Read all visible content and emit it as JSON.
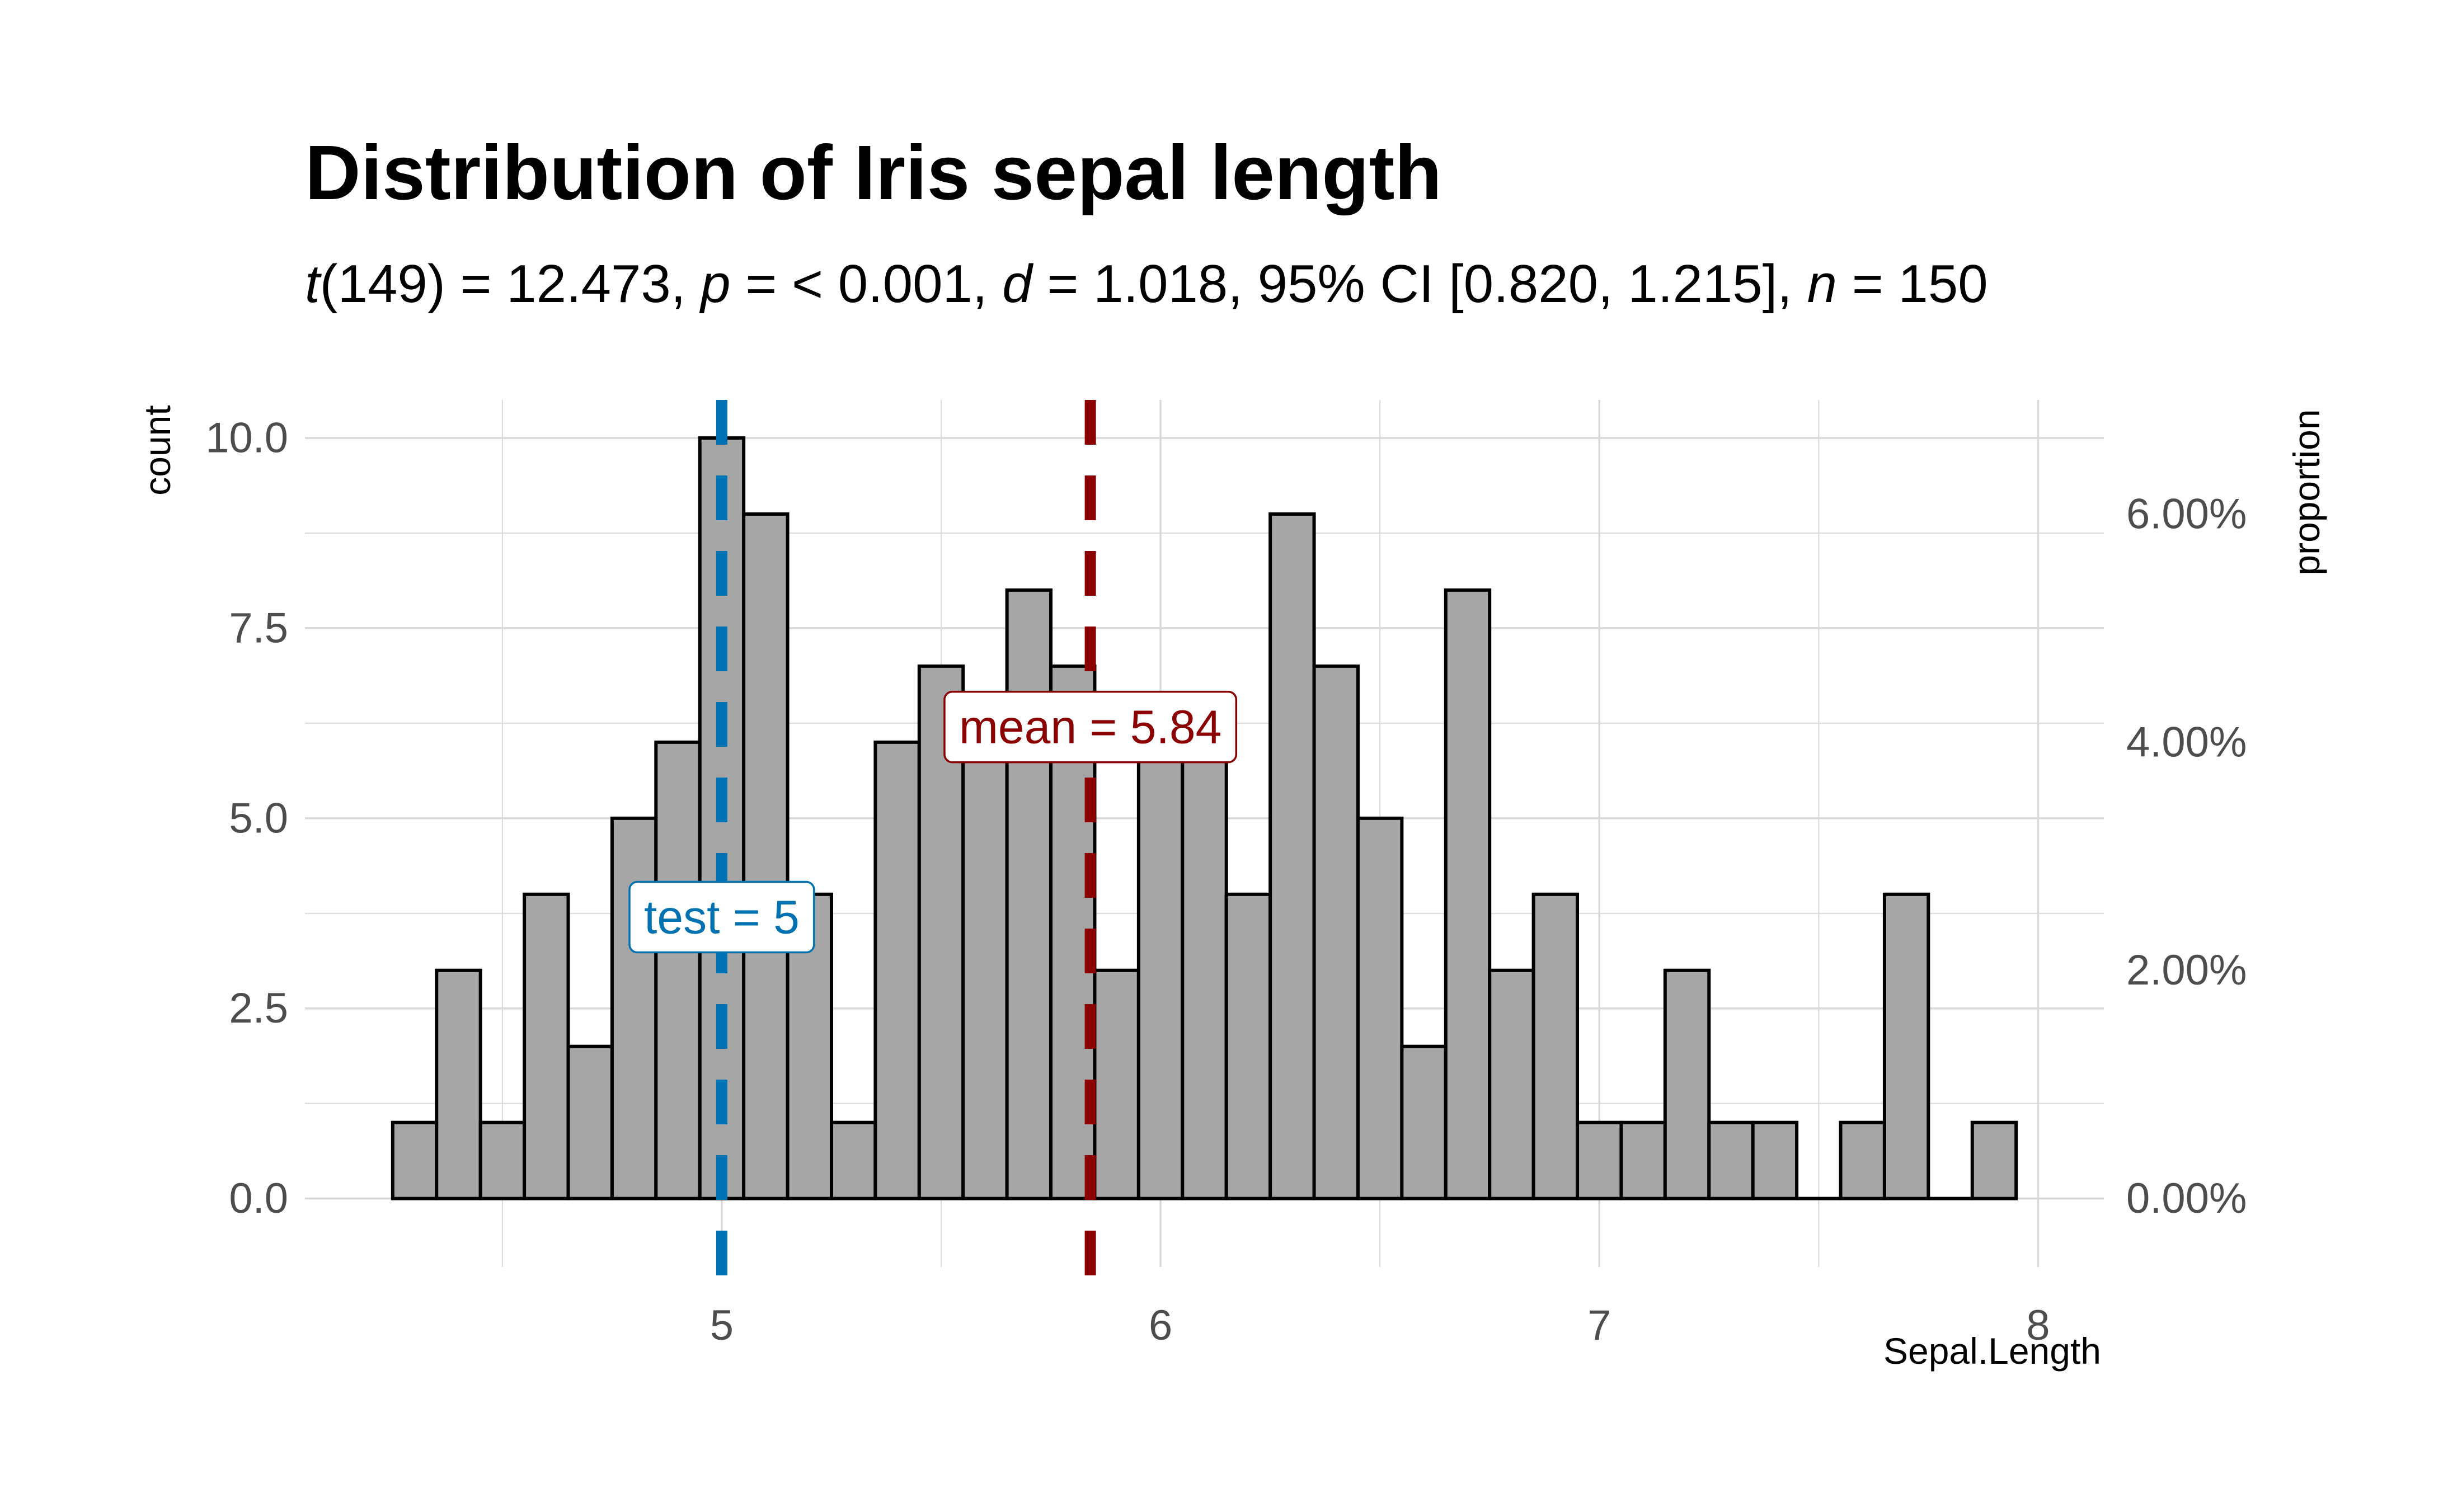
{
  "chart_data": {
    "type": "histogram",
    "title": "Distribution of Iris sepal length",
    "subtitle": {
      "parts": [
        {
          "text": "t",
          "italic": true
        },
        {
          "text": "(149) = 12.473, ",
          "italic": false
        },
        {
          "text": "p",
          "italic": true
        },
        {
          "text": " = < 0.001, ",
          "italic": false
        },
        {
          "text": "d",
          "italic": true
        },
        {
          "text": " = 1.018, 95% CI [0.820, 1.215], ",
          "italic": false
        },
        {
          "text": "n",
          "italic": true
        },
        {
          "text": " = 150",
          "italic": false
        }
      ]
    },
    "xlabel": "Sepal.Length",
    "ylabel": "count",
    "y2label": "proportion",
    "xlim": [
      4.05,
      8.15
    ],
    "ylim": [
      -0.9,
      10.5
    ],
    "x_ticks": [
      5,
      6,
      7,
      8
    ],
    "x_tick_labels": [
      "5",
      "6",
      "7",
      "8"
    ],
    "y_ticks": [
      0,
      2.5,
      5,
      7.5,
      10
    ],
    "y_tick_labels": [
      "0.0",
      "2.5",
      "5.0",
      "7.5",
      "10.0"
    ],
    "y2_ticks": [
      0,
      0.02,
      0.04,
      0.06
    ],
    "y2_tick_labels": [
      "0.00%",
      "2.00%",
      "4.00%",
      "6.00%"
    ],
    "total_n": 150,
    "bin_width": 0.1,
    "bins": {
      "centers": [
        4.3,
        4.4,
        4.5,
        4.6,
        4.7,
        4.8,
        4.9,
        5.0,
        5.1,
        5.2,
        5.3,
        5.4,
        5.5,
        5.6,
        5.7,
        5.8,
        5.9,
        6.0,
        6.1,
        6.2,
        6.3,
        6.4,
        6.5,
        6.6,
        6.7,
        6.8,
        6.9,
        7.0,
        7.1,
        7.2,
        7.3,
        7.4,
        7.5,
        7.6,
        7.7,
        7.8,
        7.9
      ],
      "counts": [
        1,
        3,
        1,
        4,
        2,
        5,
        6,
        10,
        9,
        4,
        1,
        6,
        7,
        6,
        8,
        7,
        3,
        6,
        6,
        4,
        9,
        7,
        5,
        2,
        8,
        3,
        4,
        1,
        1,
        3,
        1,
        1,
        0,
        1,
        4,
        0,
        1
      ]
    },
    "bar_fill": "#a6a6a6",
    "bar_stroke": "#000000",
    "reference_lines": [
      {
        "name": "test",
        "value": 5,
        "label": "test = 5",
        "color": "#0072b2",
        "label_y": 3.7
      },
      {
        "name": "mean",
        "value": 5.84,
        "label": "mean = 5.84",
        "color": "#8b0000",
        "label_y": 6.2
      }
    ],
    "grid": true
  }
}
